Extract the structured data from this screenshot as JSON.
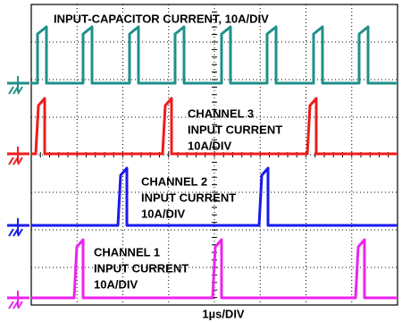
{
  "title": "INPUT-CAPACITOR CURRENT, 10A/DIV",
  "channels": [
    {
      "lines": [
        "CHANNEL 3",
        "INPUT CURRENT",
        "10A/DIV"
      ]
    },
    {
      "lines": [
        "CHANNEL 2",
        "INPUT CURRENT",
        "10A/DIV"
      ]
    },
    {
      "lines": [
        "CHANNEL 1",
        "INPUT CURRENT",
        "10A/DIV"
      ]
    }
  ],
  "time_scale": "1µs/DIV"
}
